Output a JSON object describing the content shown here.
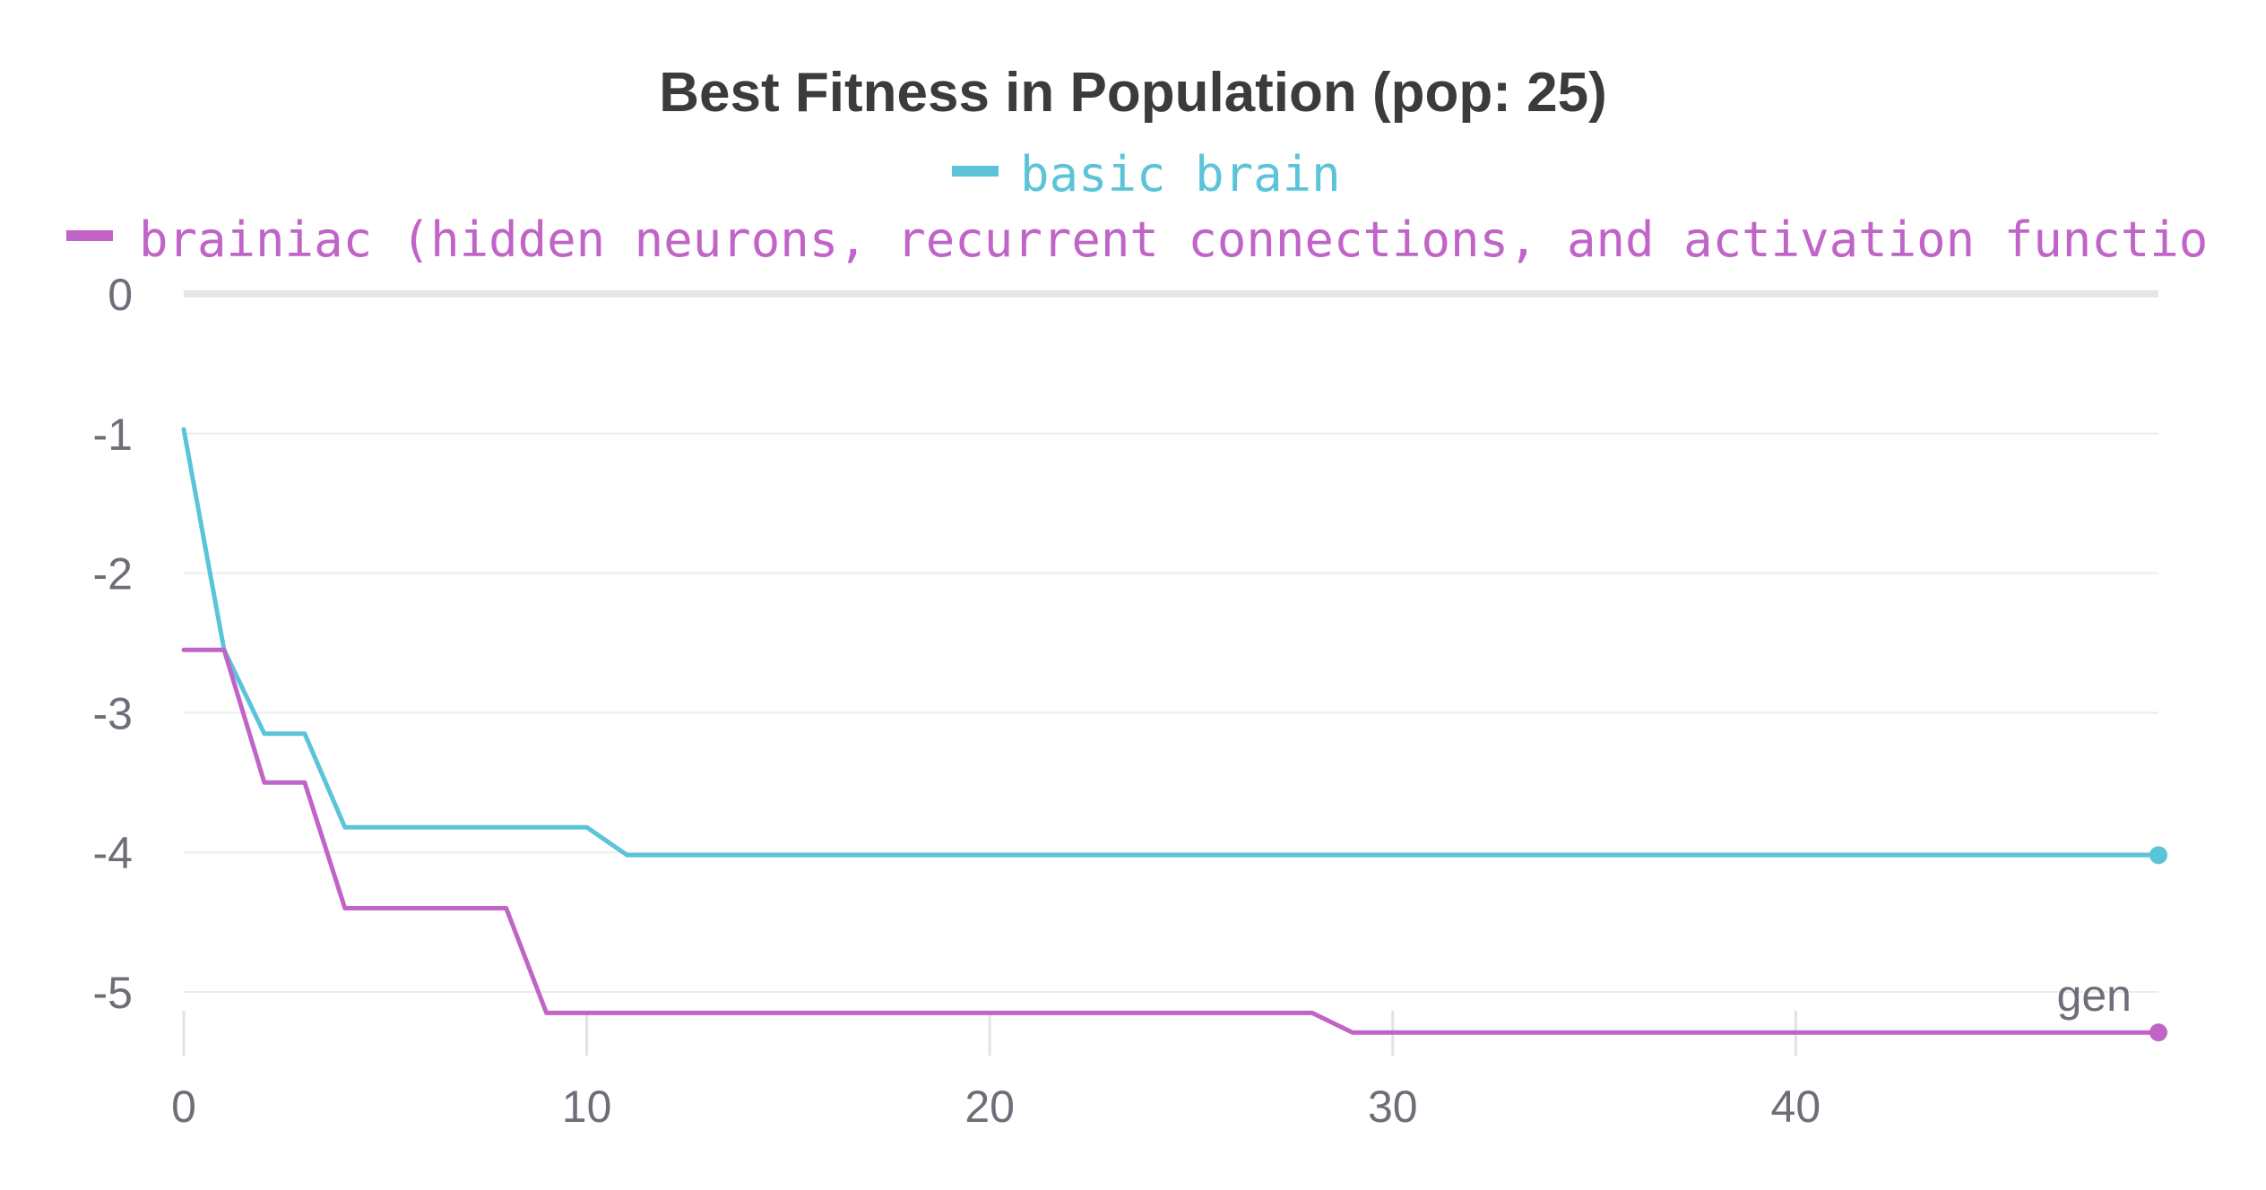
{
  "chart_data": {
    "type": "line",
    "title": "Best Fitness in Population (pop: 25)",
    "xlabel": "gen",
    "ylabel": "",
    "xlim": [
      0,
      49
    ],
    "ylim": [
      -5.35,
      0
    ],
    "x_ticks": [
      0,
      10,
      20,
      30,
      40
    ],
    "y_ticks": [
      0,
      -1,
      -2,
      -3,
      -4,
      -5
    ],
    "grid": "horizontal",
    "legend_position": "top-center",
    "series": [
      {
        "name": "basic brain",
        "color": "#5bc4d9",
        "x": [
          0,
          1,
          2,
          3,
          4,
          5,
          6,
          7,
          8,
          9,
          10,
          11,
          12,
          13,
          14,
          15,
          16,
          17,
          18,
          19,
          20,
          21,
          22,
          23,
          24,
          25,
          26,
          27,
          28,
          29,
          30,
          31,
          32,
          33,
          34,
          35,
          36,
          37,
          38,
          39,
          40,
          41,
          42,
          43,
          44,
          45,
          46,
          47,
          48,
          49
        ],
        "values": [
          -0.97,
          -2.55,
          -3.15,
          -3.15,
          -3.82,
          -3.82,
          -3.82,
          -3.82,
          -3.82,
          -3.82,
          -3.82,
          -4.02,
          -4.02,
          -4.02,
          -4.02,
          -4.02,
          -4.02,
          -4.02,
          -4.02,
          -4.02,
          -4.02,
          -4.02,
          -4.02,
          -4.02,
          -4.02,
          -4.02,
          -4.02,
          -4.02,
          -4.02,
          -4.02,
          -4.02,
          -4.02,
          -4.02,
          -4.02,
          -4.02,
          -4.02,
          -4.02,
          -4.02,
          -4.02,
          -4.02,
          -4.02,
          -4.02,
          -4.02,
          -4.02,
          -4.02,
          -4.02,
          -4.02,
          -4.02,
          -4.02,
          -4.02
        ]
      },
      {
        "name": "brainiac (hidden neurons, recurrent connections, and activation functio",
        "color": "#c064c8",
        "x": [
          0,
          1,
          2,
          3,
          4,
          5,
          6,
          7,
          8,
          9,
          10,
          11,
          12,
          13,
          14,
          15,
          16,
          17,
          18,
          19,
          20,
          21,
          22,
          23,
          24,
          25,
          26,
          27,
          28,
          29,
          30,
          31,
          32,
          33,
          34,
          35,
          36,
          37,
          38,
          39,
          40,
          41,
          42,
          43,
          44,
          45,
          46,
          47,
          48,
          49
        ],
        "values": [
          -2.55,
          -2.55,
          -3.5,
          -3.5,
          -4.4,
          -4.4,
          -4.4,
          -4.4,
          -4.4,
          -5.15,
          -5.15,
          -5.15,
          -5.15,
          -5.15,
          -5.15,
          -5.15,
          -5.15,
          -5.15,
          -5.15,
          -5.15,
          -5.15,
          -5.15,
          -5.15,
          -5.15,
          -5.15,
          -5.15,
          -5.15,
          -5.15,
          -5.15,
          -5.29,
          -5.29,
          -5.29,
          -5.29,
          -5.29,
          -5.29,
          -5.29,
          -5.29,
          -5.29,
          -5.29,
          -5.29,
          -5.29,
          -5.29,
          -5.29,
          -5.29,
          -5.29,
          -5.29,
          -5.29,
          -5.29,
          -5.29,
          -5.29
        ]
      }
    ]
  }
}
